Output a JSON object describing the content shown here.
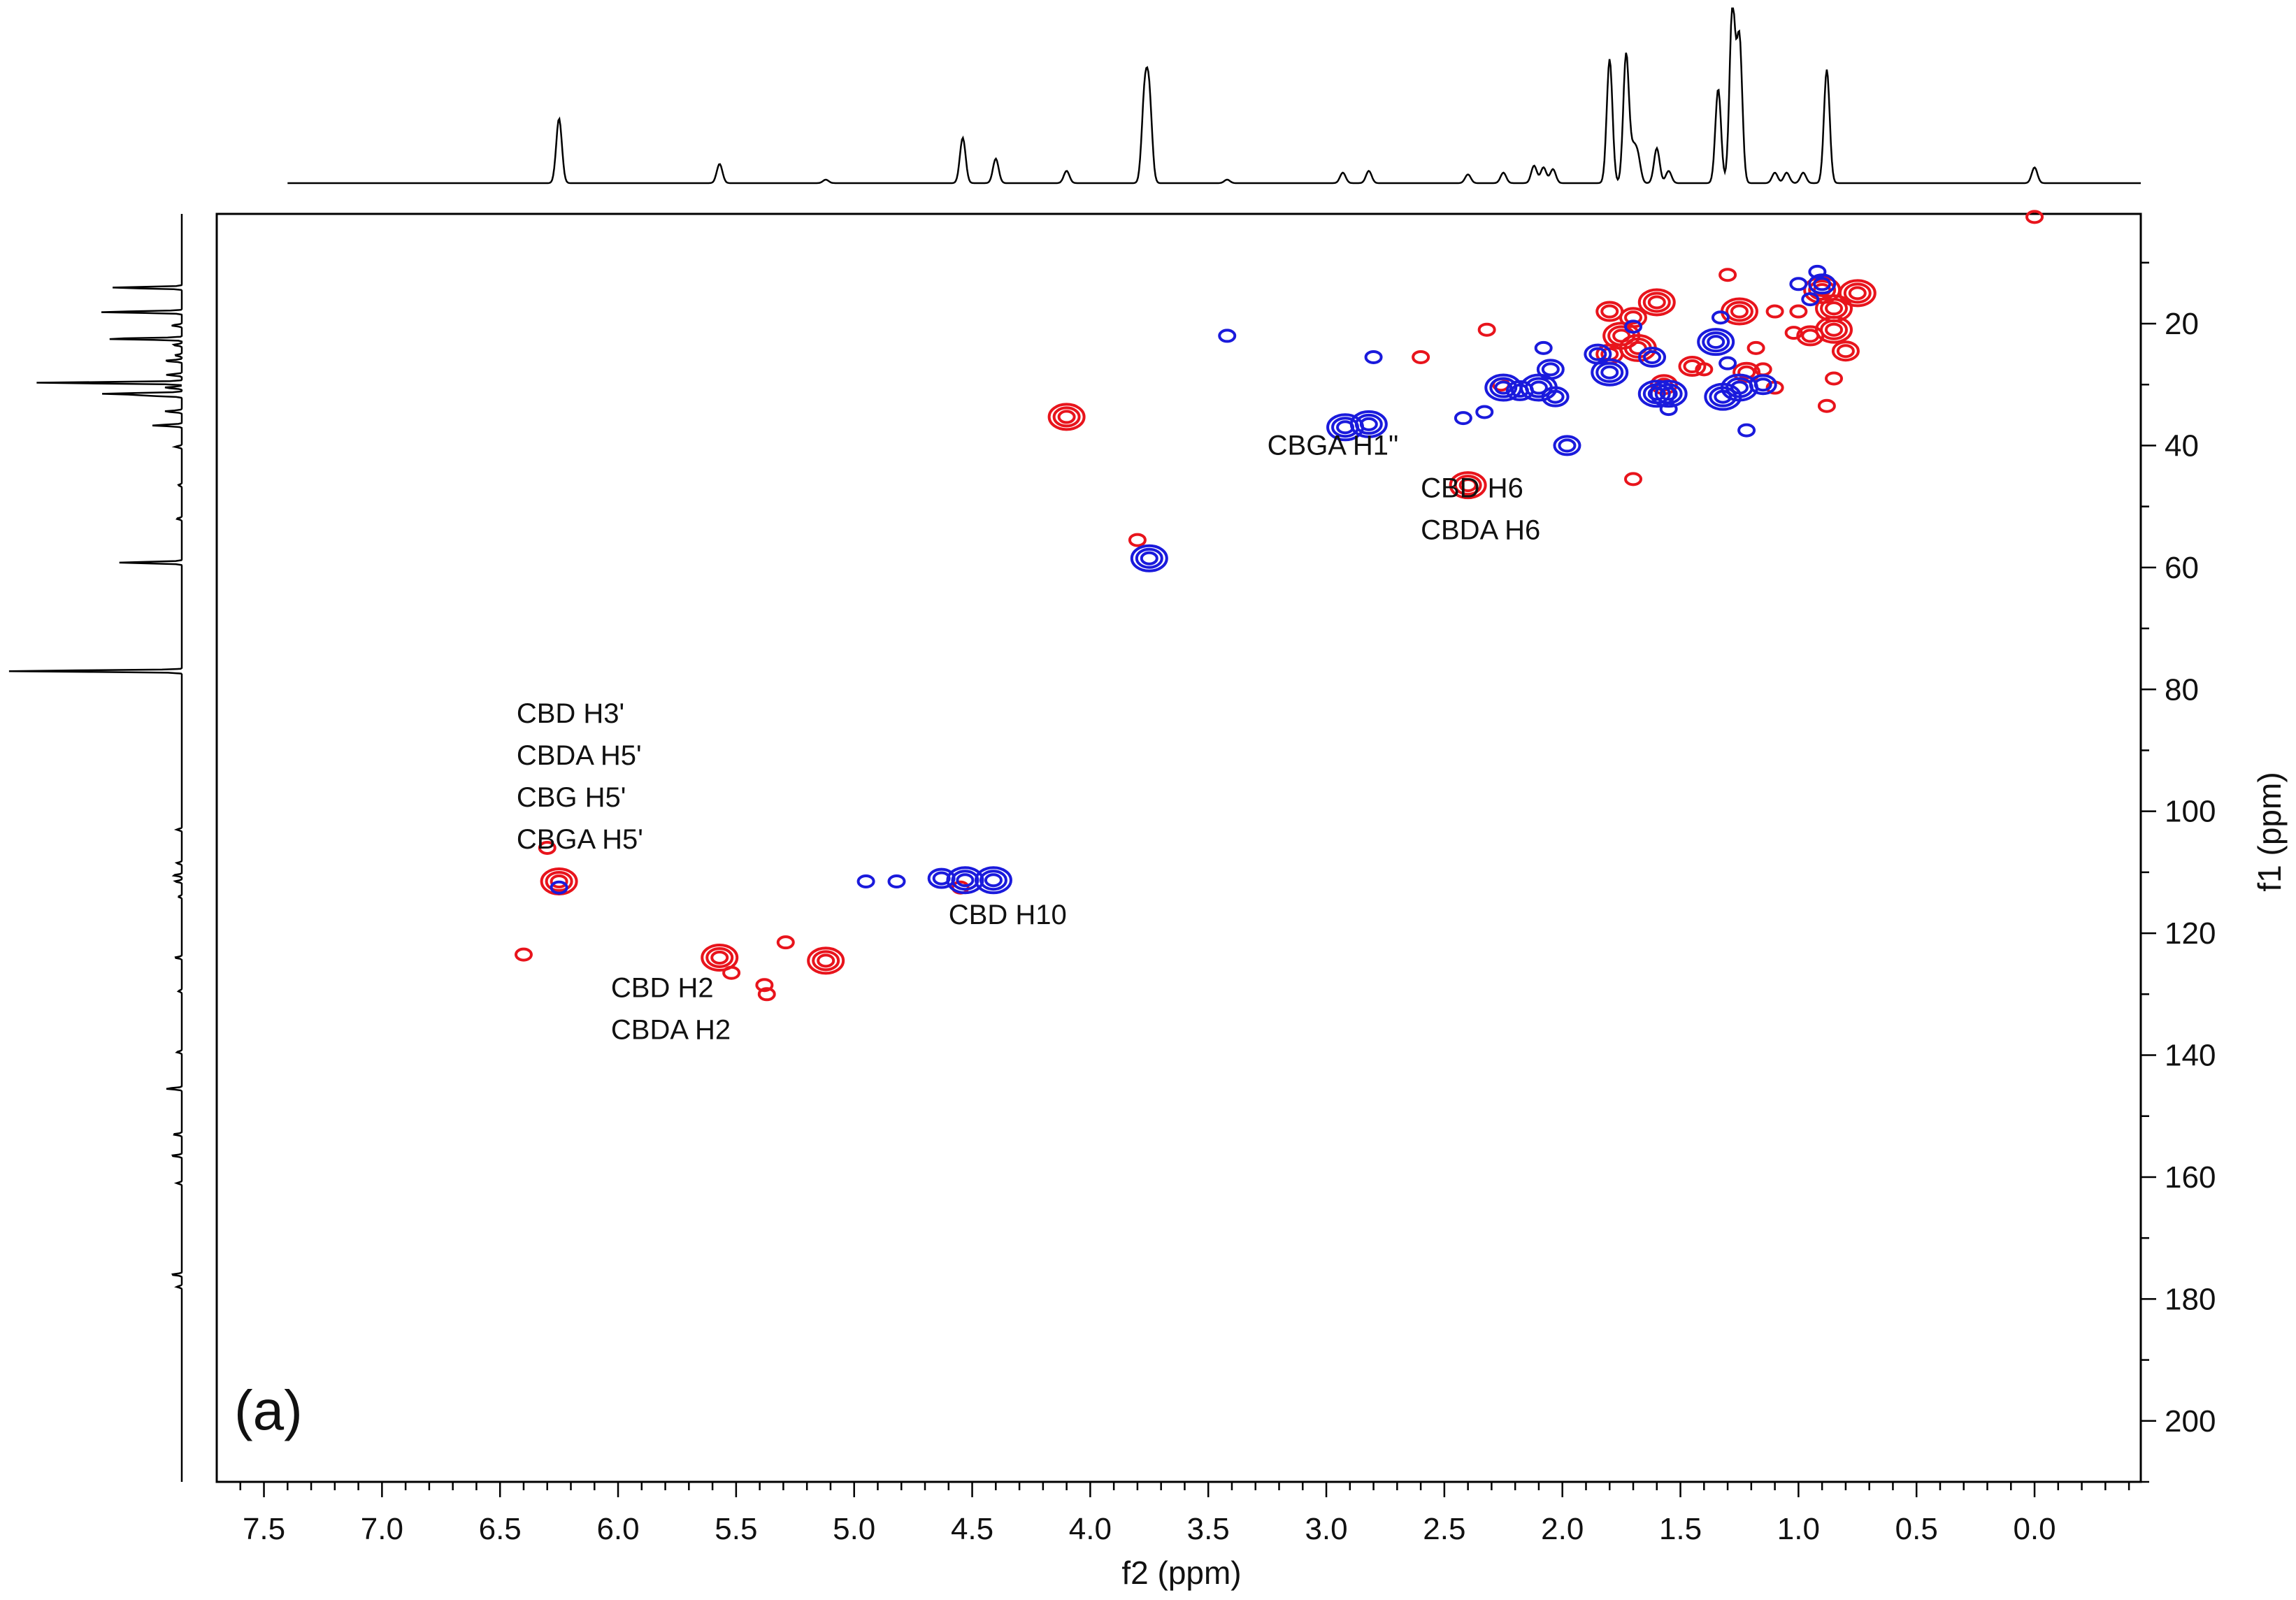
{
  "chart_data": {
    "type": "scatter",
    "subtype": "2D NMR contour map (HSQC) with 1D projections",
    "panel_label": "(a)",
    "xlabel": "f2 (ppm)",
    "ylabel": "f1 (ppm)",
    "xlim": [
      7.7,
      -0.45
    ],
    "ylim": [
      2,
      210
    ],
    "x_axis_reversed": true,
    "y_axis_reversed": true,
    "x_ticks": [
      7.5,
      7.0,
      6.5,
      6.0,
      5.5,
      5.0,
      4.5,
      4.0,
      3.5,
      3.0,
      2.5,
      2.0,
      1.5,
      1.0,
      0.5,
      0.0
    ],
    "x_tick_labels": [
      "7.5",
      "7.0",
      "6.5",
      "6.0",
      "5.5",
      "5.0",
      "4.5",
      "4.0",
      "3.5",
      "3.0",
      "2.5",
      "2.0",
      "1.5",
      "1.0",
      "0.5",
      "0.0"
    ],
    "y_ticks": [
      20,
      40,
      60,
      80,
      100,
      120,
      140,
      160,
      180,
      200
    ],
    "y_tick_labels": [
      "20",
      "40",
      "60",
      "80",
      "100",
      "120",
      "140",
      "160",
      "180",
      "200"
    ],
    "grid": false,
    "colors": {
      "positive": "#e8141c",
      "negative": "#1a1adc",
      "trace": "#000000"
    },
    "annotations": [
      {
        "lines": [
          "CBGA H1\""
        ],
        "x": 3.25,
        "y": 41.5
      },
      {
        "lines": [
          "CBD H6",
          "CBDA H6"
        ],
        "x": 2.6,
        "y": 48.5
      },
      {
        "lines": [
          "CBD H3'",
          "CBDA H5'",
          "CBG H5'",
          "CBGA H5'"
        ],
        "x": 6.43,
        "y": 85.5
      },
      {
        "lines": [
          "CBD H10"
        ],
        "x": 4.6,
        "y": 118.5
      },
      {
        "lines": [
          "CBD H2",
          "CBDA H2"
        ],
        "x": 6.03,
        "y": 130.5
      }
    ],
    "series": [
      {
        "sign": "positive",
        "color": "#e8141c",
        "points": [
          [
            6.25,
            111.5,
            3
          ],
          [
            6.4,
            123.5,
            1
          ],
          [
            6.3,
            106.0,
            1
          ],
          [
            5.57,
            124.0,
            3
          ],
          [
            5.52,
            126.5,
            1
          ],
          [
            5.38,
            128.5,
            1
          ],
          [
            5.37,
            130.0,
            1
          ],
          [
            5.29,
            121.5,
            1
          ],
          [
            5.12,
            124.5,
            3
          ],
          [
            4.55,
            112.5,
            1
          ],
          [
            4.1,
            35.3,
            3
          ],
          [
            3.8,
            55.5,
            1
          ],
          [
            2.4,
            46.5,
            3
          ],
          [
            2.6,
            25.5,
            1
          ],
          [
            2.32,
            21.0,
            1
          ],
          [
            2.26,
            30.0,
            1
          ],
          [
            1.8,
            18.0,
            2
          ],
          [
            1.75,
            22.0,
            3
          ],
          [
            1.7,
            19.0,
            2
          ],
          [
            1.68,
            24.0,
            3
          ],
          [
            1.8,
            25.0,
            2
          ],
          [
            1.6,
            16.5,
            3
          ],
          [
            1.57,
            30.0,
            2
          ],
          [
            1.45,
            27.0,
            2
          ],
          [
            1.4,
            27.5,
            1
          ],
          [
            1.25,
            18.0,
            3
          ],
          [
            1.22,
            28.0,
            2
          ],
          [
            1.18,
            24.0,
            1
          ],
          [
            1.15,
            27.5,
            1
          ],
          [
            1.1,
            30.5,
            1
          ],
          [
            1.0,
            18.0,
            1
          ],
          [
            0.95,
            22.0,
            2
          ],
          [
            0.9,
            14.5,
            3
          ],
          [
            0.85,
            17.5,
            3
          ],
          [
            0.85,
            21.0,
            3
          ],
          [
            0.85,
            29.0,
            1
          ],
          [
            0.88,
            33.5,
            1
          ],
          [
            0.75,
            15.0,
            3
          ],
          [
            0.8,
            24.5,
            2
          ],
          [
            1.02,
            21.5,
            1
          ],
          [
            1.7,
            45.5,
            1
          ],
          [
            0.0,
            2.5,
            1
          ],
          [
            1.3,
            12.0,
            1
          ],
          [
            1.1,
            18.0,
            1
          ]
        ]
      },
      {
        "sign": "negative",
        "color": "#1a1adc",
        "points": [
          [
            6.25,
            112.5,
            1
          ],
          [
            4.95,
            111.5,
            1
          ],
          [
            4.82,
            111.5,
            1
          ],
          [
            4.63,
            111.0,
            2
          ],
          [
            4.53,
            111.3,
            3
          ],
          [
            4.41,
            111.3,
            3
          ],
          [
            3.75,
            58.5,
            3
          ],
          [
            3.42,
            22.0,
            1
          ],
          [
            2.8,
            25.5,
            1
          ],
          [
            2.92,
            37.0,
            3
          ],
          [
            2.82,
            36.5,
            3
          ],
          [
            2.42,
            35.5,
            1
          ],
          [
            2.33,
            34.5,
            1
          ],
          [
            2.25,
            30.5,
            3
          ],
          [
            2.18,
            31.0,
            2
          ],
          [
            2.1,
            30.5,
            3
          ],
          [
            2.08,
            24.0,
            1
          ],
          [
            2.05,
            27.5,
            2
          ],
          [
            2.03,
            32.0,
            2
          ],
          [
            1.98,
            40.0,
            2
          ],
          [
            1.85,
            25.0,
            2
          ],
          [
            1.8,
            28.0,
            3
          ],
          [
            1.7,
            20.5,
            1
          ],
          [
            1.62,
            25.5,
            2
          ],
          [
            1.6,
            31.5,
            3
          ],
          [
            1.55,
            31.5,
            3
          ],
          [
            1.55,
            34.0,
            1
          ],
          [
            1.35,
            23.0,
            3
          ],
          [
            1.33,
            19.0,
            1
          ],
          [
            1.3,
            26.5,
            1
          ],
          [
            1.32,
            32.0,
            3
          ],
          [
            1.25,
            30.5,
            3
          ],
          [
            1.15,
            30.0,
            2
          ],
          [
            1.22,
            37.5,
            1
          ],
          [
            0.9,
            13.5,
            2
          ],
          [
            0.95,
            16.0,
            1
          ],
          [
            0.92,
            11.5,
            1
          ],
          [
            1.0,
            13.5,
            1
          ]
        ]
      }
    ],
    "f2_projection_peaks": [
      [
        6.25,
        0.37
      ],
      [
        5.57,
        0.11
      ],
      [
        5.12,
        0.02
      ],
      [
        4.54,
        0.26
      ],
      [
        4.4,
        0.14
      ],
      [
        4.1,
        0.07
      ],
      [
        3.77,
        0.47
      ],
      [
        3.75,
        0.47
      ],
      [
        3.42,
        0.02
      ],
      [
        2.93,
        0.06
      ],
      [
        2.82,
        0.07
      ],
      [
        2.4,
        0.05
      ],
      [
        2.25,
        0.06
      ],
      [
        2.12,
        0.1
      ],
      [
        2.08,
        0.09
      ],
      [
        2.04,
        0.08
      ],
      [
        1.8,
        0.71
      ],
      [
        1.73,
        0.74
      ],
      [
        1.7,
        0.17
      ],
      [
        1.68,
        0.14
      ],
      [
        1.6,
        0.2
      ],
      [
        1.55,
        0.07
      ],
      [
        1.34,
        0.54
      ],
      [
        1.28,
        1.0
      ],
      [
        1.25,
        0.82
      ],
      [
        1.1,
        0.06
      ],
      [
        1.05,
        0.06
      ],
      [
        0.98,
        0.06
      ],
      [
        0.88,
        0.65
      ],
      [
        0.0,
        0.09
      ]
    ],
    "f1_projection_peaks": [
      [
        14.1,
        0.4
      ],
      [
        18.1,
        0.47
      ],
      [
        20.3,
        0.06
      ],
      [
        22.5,
        0.44
      ],
      [
        23.5,
        0.05
      ],
      [
        25.2,
        0.04
      ],
      [
        26.1,
        0.1
      ],
      [
        28.4,
        0.09
      ],
      [
        29.7,
        0.84
      ],
      [
        30.5,
        0.1
      ],
      [
        31.5,
        0.45
      ],
      [
        31.8,
        0.2
      ],
      [
        34.4,
        0.1
      ],
      [
        36.7,
        0.17
      ],
      [
        40.2,
        0.04
      ],
      [
        46.5,
        0.02
      ],
      [
        52.0,
        0.03
      ],
      [
        59.2,
        0.36
      ],
      [
        77.0,
        1.0
      ],
      [
        103.0,
        0.03
      ],
      [
        108.5,
        0.03
      ],
      [
        110.5,
        0.05
      ],
      [
        111.5,
        0.04
      ],
      [
        114.0,
        0.02
      ],
      [
        124.0,
        0.04
      ],
      [
        129.5,
        0.02
      ],
      [
        139.5,
        0.03
      ],
      [
        145.5,
        0.09
      ],
      [
        153.0,
        0.05
      ],
      [
        156.5,
        0.06
      ],
      [
        161.0,
        0.03
      ],
      [
        176.0,
        0.06
      ],
      [
        178.0,
        0.03
      ]
    ]
  }
}
